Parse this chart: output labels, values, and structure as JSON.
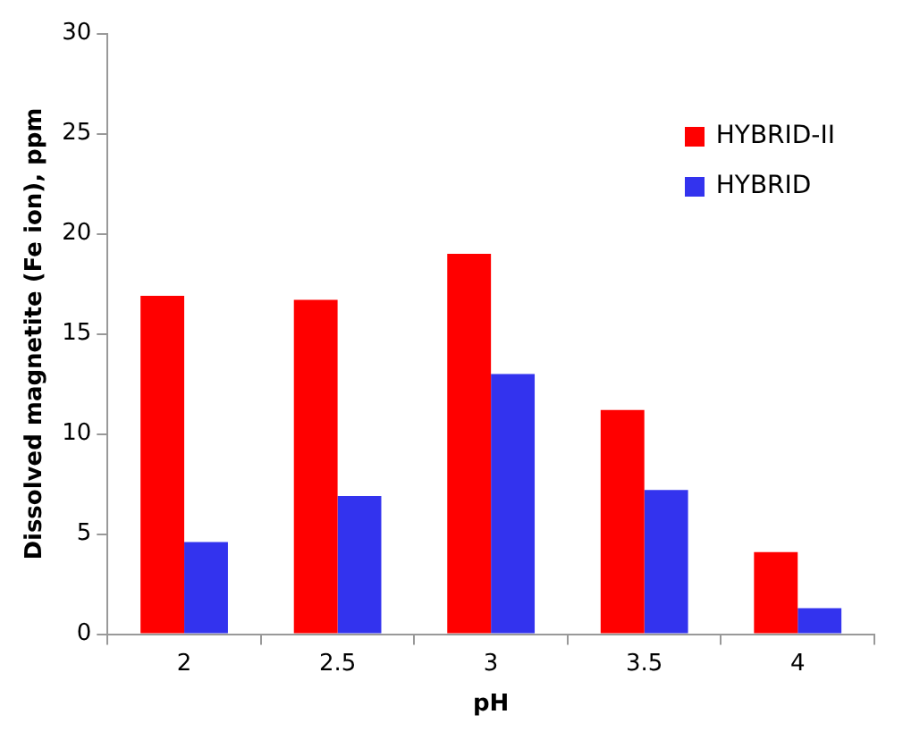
{
  "chart_data": {
    "type": "bar",
    "xlabel": "pH",
    "ylabel": "Dissolved magnetite (Fe ion), ppm",
    "categories": [
      "2",
      "2.5",
      "3",
      "3.5",
      "4"
    ],
    "series": [
      {
        "name": "HYBRID-II",
        "color": "#ff0000",
        "values": [
          16.9,
          16.7,
          19.0,
          11.2,
          4.1
        ]
      },
      {
        "name": "HYBRID",
        "color": "#3333ee",
        "values": [
          4.6,
          6.9,
          13.0,
          7.2,
          1.3
        ]
      }
    ],
    "ylim": [
      0,
      30
    ],
    "yticks": [
      0,
      5,
      10,
      15,
      20,
      25,
      30
    ],
    "grid": false,
    "legend": "top right"
  }
}
